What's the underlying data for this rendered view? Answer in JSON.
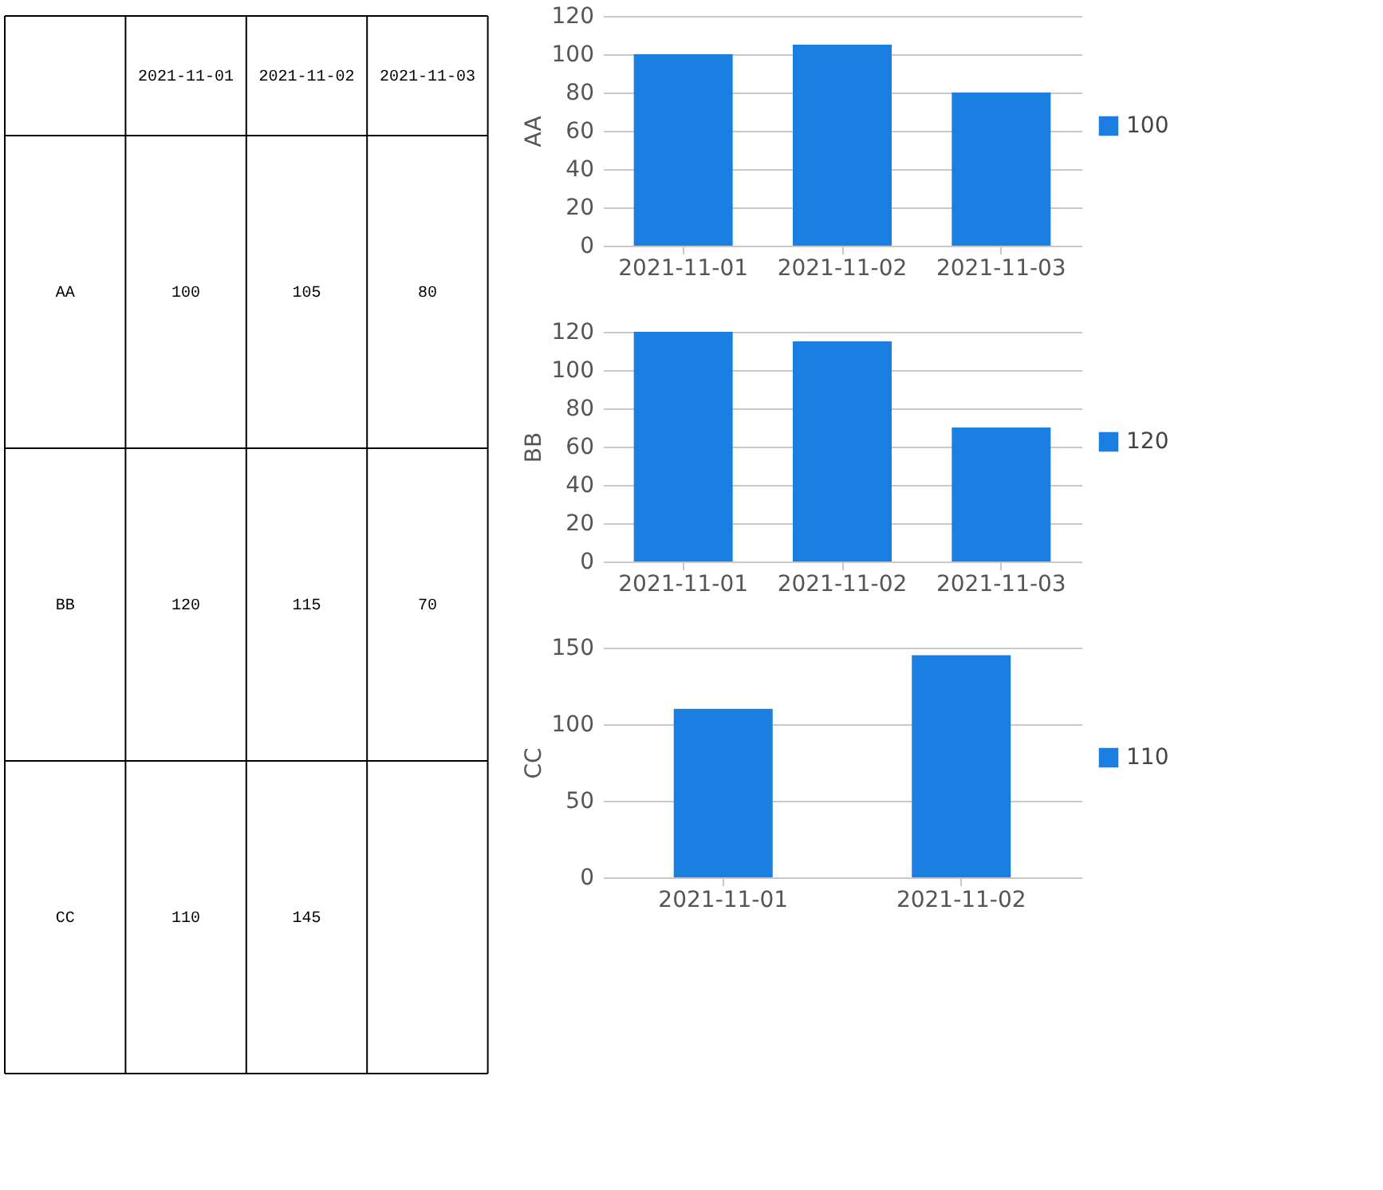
{
  "chart_data": [
    {
      "type": "heatmap",
      "categories": [
        "2021-11-01",
        "2021-11-02",
        "2021-11-03"
      ],
      "y_categories": [
        "AA",
        "BB",
        "CC"
      ],
      "cells": [
        [
          100,
          105,
          80
        ],
        [
          120,
          115,
          70
        ],
        [
          110,
          145,
          null
        ]
      ],
      "data_labels": true
    },
    {
      "type": "bar",
      "ylabel": "AA",
      "categories": [
        "2021-11-01",
        "2021-11-02",
        "2021-11-03"
      ],
      "series": [
        {
          "name": "100",
          "color": "#1a7fe0",
          "values": [
            100,
            105,
            80
          ]
        }
      ],
      "ylim": [
        0,
        120
      ],
      "yticks": [
        0,
        20,
        40,
        60,
        80,
        100,
        120
      ],
      "grid": "y",
      "legend": "right"
    },
    {
      "type": "bar",
      "ylabel": "BB",
      "categories": [
        "2021-11-01",
        "2021-11-02",
        "2021-11-03"
      ],
      "series": [
        {
          "name": "120",
          "color": "#1a7fe0",
          "values": [
            120,
            115,
            70
          ]
        }
      ],
      "ylim": [
        0,
        120
      ],
      "yticks": [
        0,
        20,
        40,
        60,
        80,
        100,
        120
      ],
      "grid": "y",
      "legend": "right"
    },
    {
      "type": "bar",
      "ylabel": "CC",
      "categories": [
        "2021-11-01",
        "2021-11-02"
      ],
      "series": [
        {
          "name": "110",
          "color": "#1a7fe0",
          "values": [
            110,
            145
          ]
        }
      ],
      "ylim": [
        0,
        150
      ],
      "yticks": [
        0,
        50,
        100,
        150
      ],
      "grid": "y",
      "legend": "right"
    }
  ]
}
